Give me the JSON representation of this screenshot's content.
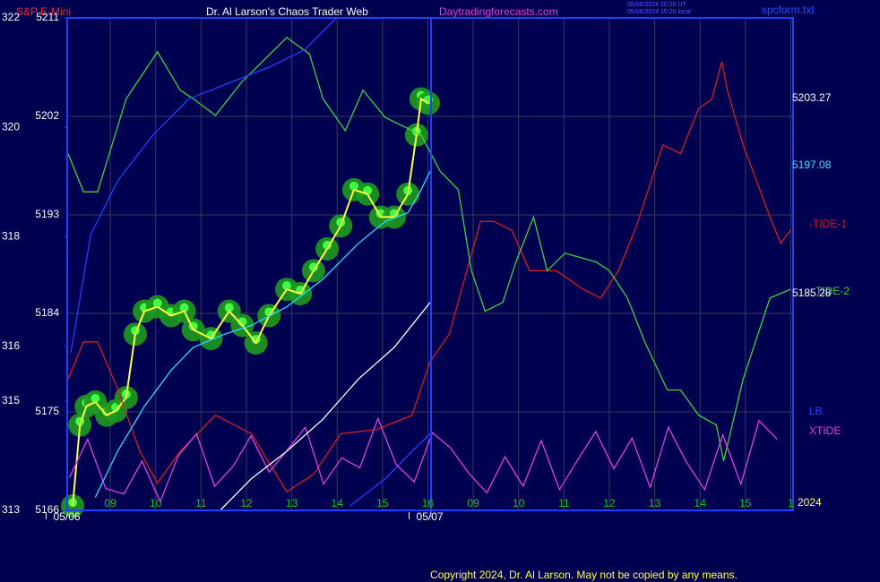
{
  "chart_data": {
    "type": "line",
    "title": "Dr. Al Larson's Chaos Trader Web",
    "subtitle": "S&P E-Mini",
    "website": "Daytradingforecasts.com",
    "stamps": [
      "05/06/2024 20:20 UT",
      "05/06/2024 15:20 local"
    ],
    "file_name": "spcform.txt",
    "copyright": "Copyright 2024, Dr. Al Larson. May not be copied by any means.",
    "year_label": "2024",
    "dates": [
      {
        "value": 8.1,
        "label": "05/06"
      },
      {
        "value": 16.1,
        "label": "05/07"
      }
    ],
    "right_labels": [
      {
        "text": "5203.27",
        "color": "#ffffff"
      },
      {
        "text": "5197.08",
        "color": "#40e0ff"
      },
      {
        "text": "5185.28",
        "color": "#ffffff"
      }
    ],
    "xlim": [
      8.05,
      24.05
    ],
    "xticks": [
      {
        "value": 9,
        "label": "09"
      },
      10,
      11,
      12,
      13,
      14,
      15,
      16,
      {
        "value": 17,
        "label": "09"
      },
      {
        "value": 18,
        "label": "10"
      },
      {
        "value": 19,
        "label": "11"
      },
      {
        "value": 20,
        "label": "12"
      },
      {
        "value": 21,
        "label": "13"
      },
      {
        "value": 22,
        "label": "14"
      },
      {
        "value": 23,
        "label": "15"
      },
      {
        "value": 24,
        "label": "1"
      }
    ],
    "ylim": [
      5166,
      5211
    ],
    "yticks": [
      5166,
      5175,
      5184,
      5193,
      5202,
      5211
    ],
    "y2lim": [
      313,
      322
    ],
    "y2ticks": [
      313,
      315,
      316,
      318,
      320,
      322
    ],
    "grid": true,
    "series": [
      {
        "name": "-TIDE-1",
        "color": "#d02020",
        "x": [
          8.07,
          8.41,
          8.72,
          9.16,
          9.65,
          10.04,
          10.54,
          11.32,
          12.11,
          12.89,
          13.48,
          14.08,
          14.87,
          15.65,
          16.05,
          16.47,
          16.86,
          17.16,
          17.45,
          17.85,
          18.24,
          18.83,
          19.42,
          19.81,
          20.2,
          20.6,
          21.18,
          21.57,
          21.97,
          22.26,
          22.48,
          22.6,
          22.95,
          23.54,
          23.78,
          23.99
        ],
        "values": [
          5178.0,
          5181.4,
          5181.4,
          5177.1,
          5171.4,
          5168.5,
          5171.4,
          5174.7,
          5173.0,
          5167.7,
          5169.3,
          5173.0,
          5173.4,
          5174.7,
          5179.6,
          5182.1,
          5187.9,
          5192.4,
          5192.4,
          5191.6,
          5187.9,
          5187.9,
          5186.2,
          5185.4,
          5187.9,
          5192.0,
          5199.4,
          5198.6,
          5202.7,
          5203.6,
          5207.0,
          5204.4,
          5199.4,
          5192.8,
          5190.4,
          5191.6
        ]
      },
      {
        "name": "TIDE-2",
        "color": "#40d040",
        "x": [
          8.07,
          8.41,
          8.72,
          9.35,
          10.04,
          10.54,
          10.83,
          11.32,
          11.91,
          12.89,
          13.39,
          13.69,
          14.18,
          14.57,
          15.06,
          15.85,
          16.27,
          16.67,
          16.96,
          17.26,
          17.65,
          17.94,
          18.33,
          18.63,
          19.02,
          19.71,
          20.0,
          20.4,
          20.79,
          21.28,
          21.57,
          21.97,
          22.36,
          22.52,
          22.95,
          23.54,
          23.99
        ],
        "values": [
          5198.6,
          5195.1,
          5195.1,
          5203.6,
          5207.9,
          5204.4,
          5203.6,
          5202.1,
          5205.2,
          5209.2,
          5207.7,
          5203.6,
          5200.7,
          5204.4,
          5201.9,
          5200.3,
          5197.0,
          5195.3,
          5187.9,
          5184.2,
          5185.0,
          5188.7,
          5192.8,
          5187.9,
          5189.5,
          5188.7,
          5187.9,
          5185.4,
          5181.3,
          5177.0,
          5177.0,
          5174.7,
          5173.8,
          5170.5,
          5178.0,
          5185.4,
          5186.2
        ]
      },
      {
        "name": "LB",
        "color": "#2040ff",
        "x": [
          8.13,
          8.57,
          9.16,
          9.94,
          10.73,
          11.71,
          12.5,
          13.29,
          13.98,
          14.2,
          14.28,
          15.06,
          15.65,
          16.05
        ],
        "values": [
          5180.4,
          5191.2,
          5196.1,
          5200.3,
          5203.6,
          5205.2,
          5206.5,
          5208.1,
          5211.0,
          null,
          5166.4,
          5168.9,
          5171.4,
          5173.0
        ]
      },
      {
        "name": "XTIDE",
        "color": "#e040e0",
        "x": [
          8.1,
          8.5,
          8.9,
          9.3,
          9.7,
          10.1,
          10.5,
          10.9,
          11.3,
          11.7,
          12.1,
          12.5,
          12.9,
          13.3,
          13.7,
          14.1,
          14.5,
          14.9,
          15.3,
          15.7,
          16.1,
          16.5,
          16.9,
          17.3,
          17.7,
          18.1,
          18.5,
          18.9,
          19.3,
          19.7,
          20.1,
          20.5,
          20.9,
          21.3,
          21.7,
          22.1,
          22.5,
          22.9,
          23.3,
          23.7
        ],
        "values": [
          5169,
          5172.5,
          5168,
          5167.5,
          5170.5,
          5166.8,
          5171,
          5173,
          5168.2,
          5170,
          5172.8,
          5169.5,
          5171.5,
          5173.6,
          5168.4,
          5170.8,
          5169.9,
          5174.4,
          5170.2,
          5168.6,
          5173.1,
          5171.7,
          5169.4,
          5167.6,
          5170.9,
          5168.2,
          5172.4,
          5167.9,
          5170.6,
          5173.2,
          5169.8,
          5172.6,
          5168.1,
          5173.6,
          5170.4,
          5167.9,
          5172.9,
          5168.4,
          5174.2,
          5172.5
        ]
      },
      {
        "color": "#ffffff",
        "x": [
          11.42,
          12.11,
          12.89,
          13.68,
          14.47,
          15.26,
          16.05
        ],
        "values": [
          5166.0,
          5168.9,
          5171.4,
          5174.3,
          5178.0,
          5180.9,
          5185.0
        ]
      },
      {
        "color": "#30d8ff",
        "x": [
          8.67,
          9.16,
          9.75,
          10.34,
          10.83,
          11.52,
          12.11,
          12.89,
          13.68,
          14.47,
          15.06,
          15.56,
          15.85,
          16.05
        ],
        "values": [
          5167.2,
          5171.4,
          5175.5,
          5178.8,
          5180.9,
          5182.1,
          5182.9,
          5184.6,
          5187.1,
          5190.4,
          5192.4,
          5193.2,
          5195.3,
          5197.0
        ]
      },
      {
        "color": "#ffff40",
        "marker_color": "#1f9a1f",
        "x": [
          8.17,
          8.33,
          8.47,
          8.67,
          8.92,
          9.12,
          9.35,
          9.55,
          9.75,
          10.04,
          10.34,
          10.63,
          10.83,
          11.22,
          11.62,
          11.91,
          12.21,
          12.5,
          12.89,
          13.19,
          13.48,
          13.78,
          14.08,
          14.37,
          14.67,
          14.96,
          15.26,
          15.56,
          15.75,
          15.85,
          16.01
        ],
        "values": [
          5166.4,
          5173.8,
          5175.5,
          5175.9,
          5174.7,
          5175.1,
          5176.3,
          5182.1,
          5184.2,
          5184.6,
          5183.8,
          5184.2,
          5182.5,
          5181.7,
          5184.2,
          5182.9,
          5181.3,
          5183.8,
          5186.2,
          5185.8,
          5187.9,
          5189.9,
          5192.0,
          5195.3,
          5194.9,
          5192.8,
          5192.8,
          5194.9,
          5200.3,
          5203.6,
          5203.2
        ]
      }
    ]
  }
}
